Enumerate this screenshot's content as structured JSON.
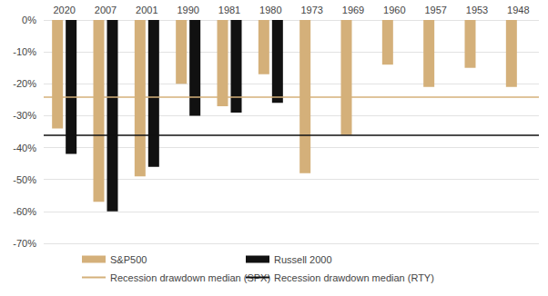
{
  "chart_data": {
    "type": "bar",
    "categories": [
      "2020",
      "2007",
      "2001",
      "1990",
      "1981",
      "1980",
      "1973",
      "1969",
      "1960",
      "1957",
      "1953",
      "1948"
    ],
    "series": [
      {
        "name": "S&P500",
        "color": "#d4b07a",
        "values": [
          -34,
          -57,
          -49,
          -20,
          -27,
          -17,
          -48,
          -36,
          -14,
          -21,
          -15,
          -21
        ]
      },
      {
        "name": "Russell 2000",
        "color": "#111111",
        "values": [
          -42,
          -60,
          -46,
          -30,
          -29,
          -26,
          null,
          null,
          null,
          null,
          null,
          null
        ]
      }
    ],
    "lines": [
      {
        "name": "Recession drawdown median (SPX)",
        "color": "#d4b07a",
        "value": -24
      },
      {
        "name": "Recession drawdown median (RTY)",
        "color": "#111111",
        "value": -36
      }
    ],
    "ylim": [
      -70,
      0
    ],
    "yticks": [
      {
        "value": 0,
        "label": "0%"
      },
      {
        "value": -10,
        "label": "-10%"
      },
      {
        "value": -20,
        "label": "-20%"
      },
      {
        "value": -30,
        "label": "-30%"
      },
      {
        "value": -40,
        "label": "-40%"
      },
      {
        "value": -50,
        "label": "-50%"
      },
      {
        "value": -60,
        "label": "-60%"
      },
      {
        "value": -70,
        "label": "-70%"
      }
    ],
    "grid": true,
    "legend": "bottom"
  }
}
